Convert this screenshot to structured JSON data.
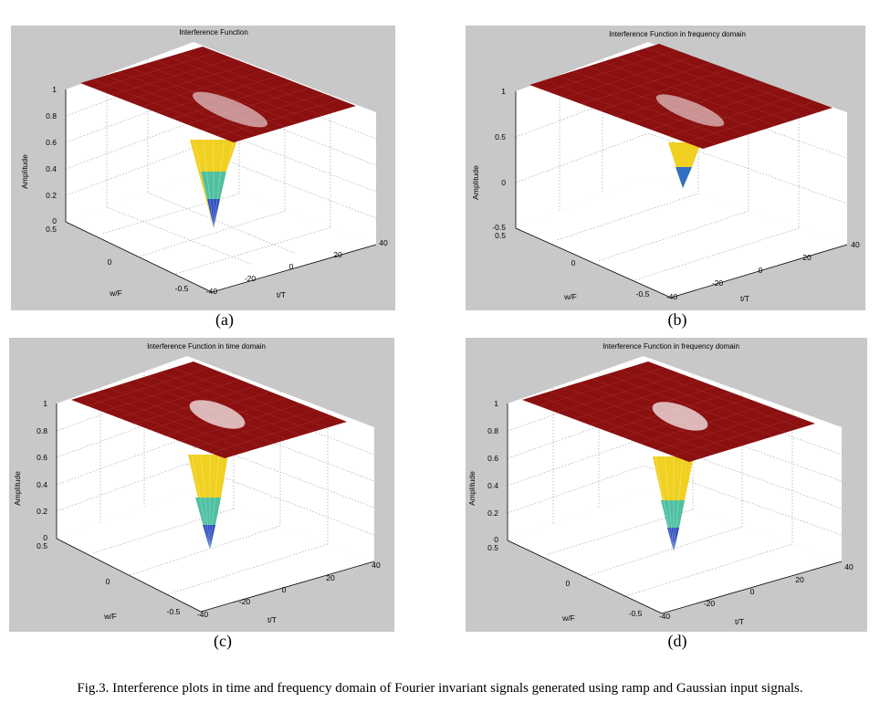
{
  "figure": {
    "caption": "Fig.3. Interference plots in time and frequency domain of Fourier invariant signals generated using ramp and Gaussian input signals.",
    "colors": {
      "panel_bg": "#c8c8c8",
      "surface": "#8b1010",
      "mesh": "#ffffff"
    },
    "panels": [
      {
        "id": "a",
        "label": "(a)",
        "title": "Interference Function",
        "zlabel": "Amplitude",
        "xlabel": "t/T",
        "ylabel": "w/F",
        "zticks": [
          "1",
          "0.8",
          "0.6",
          "0.4",
          "0.2",
          "0"
        ],
        "zticks_extra": "0.5",
        "xticks": [
          "-40",
          "-20",
          "0",
          "20",
          "40"
        ],
        "yticks": [
          "-0.5",
          "0"
        ],
        "z_range": [
          0,
          1
        ],
        "dip_min": 0
      },
      {
        "id": "b",
        "label": "(b)",
        "title": "Interference Function in frequency domain",
        "zlabel": "Amplitude",
        "xlabel": "t/T",
        "ylabel": "w/F",
        "zticks": [
          "1",
          "0.5",
          "0",
          "-0.5"
        ],
        "zticks_extra": "0.5",
        "xticks": [
          "-40",
          "-20",
          "0",
          "20",
          "40"
        ],
        "yticks": [
          "-0.5",
          "0"
        ],
        "z_range": [
          -0.5,
          1
        ],
        "dip_min": 0
      },
      {
        "id": "c",
        "label": "(c)",
        "title": "Interference Function  in time domain",
        "zlabel": "Amplitude",
        "xlabel": "t/T",
        "ylabel": "w/F",
        "zticks": [
          "1",
          "0.8",
          "0.6",
          "0.4",
          "0.2",
          "0"
        ],
        "zticks_extra": "0.5",
        "xticks": [
          "-40",
          "-20",
          "0",
          "20",
          "40"
        ],
        "yticks": [
          "-0.5",
          "0"
        ],
        "z_range": [
          0,
          1
        ],
        "dip_min": 0
      },
      {
        "id": "d",
        "label": "(d)",
        "title": "Interference Function in frequency domain",
        "zlabel": "Amplitude",
        "xlabel": "t/T",
        "ylabel": "w/F",
        "zticks": [
          "1",
          "0.8",
          "0.6",
          "0.4",
          "0.2",
          "0"
        ],
        "zticks_extra": "0.5",
        "xticks": [
          "-40",
          "-20",
          "0",
          "20",
          "40"
        ],
        "yticks": [
          "-0.5",
          "0"
        ],
        "z_range": [
          0,
          1
        ],
        "dip_min": 0
      }
    ]
  }
}
